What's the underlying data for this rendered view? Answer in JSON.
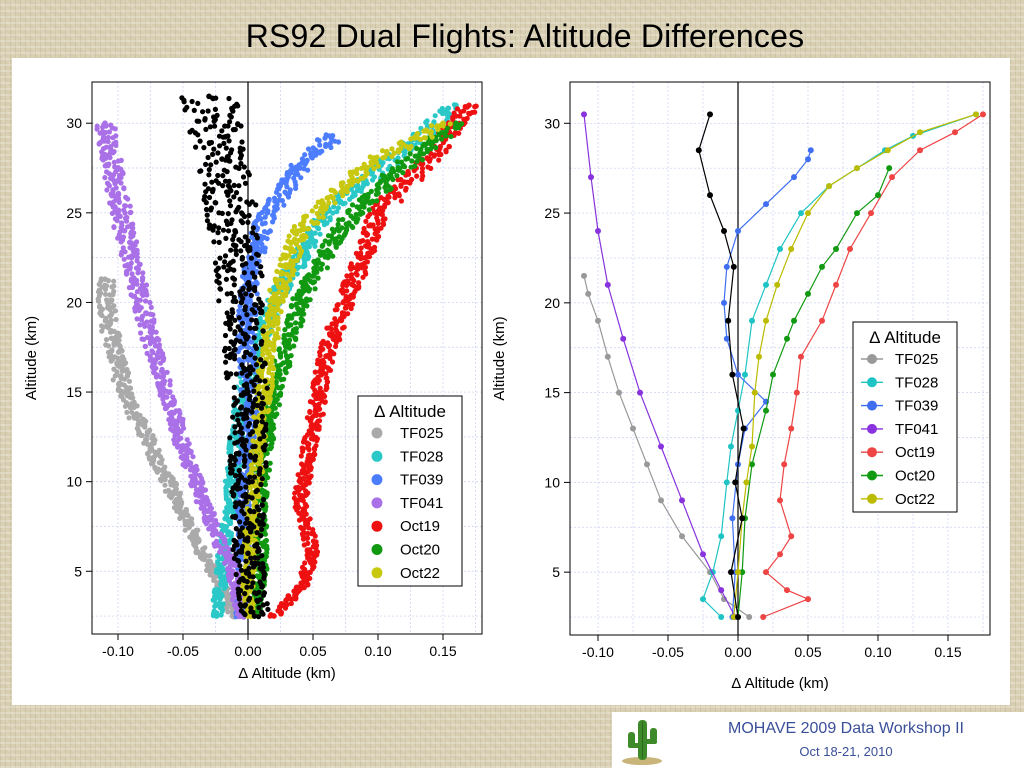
{
  "title": "RS92 Dual Flights: Altitude Differences",
  "footer": {
    "line1": "MOHAVE 2009 Data Workshop II",
    "line2": "Oct 18-21, 2010"
  },
  "chart_data": [
    {
      "type": "scatter",
      "xlabel": "Δ Altitude (km)",
      "ylabel": "Altitude (km)",
      "xlim": [
        -0.12,
        0.18
      ],
      "ylim": [
        1.5,
        32.3
      ],
      "xticks": [
        -0.1,
        -0.05,
        0.0,
        0.05,
        0.1,
        0.15
      ],
      "xtick_labels": [
        "-0.10",
        "-0.05",
        "0.00",
        "0.05",
        "0.10",
        "0.15"
      ],
      "yticks": [
        5,
        10,
        15,
        20,
        25,
        30
      ],
      "ytick_labels": [
        "5",
        "10",
        "15",
        "20",
        "25",
        "30"
      ],
      "grid": true,
      "legend": {
        "title": "Δ Altitude",
        "position": "bottom-right"
      },
      "series": [
        {
          "name": "TF025",
          "color": "#aaaaaa",
          "points": [
            [
              -0.012,
              2.5
            ],
            [
              -0.018,
              4
            ],
            [
              -0.035,
              6
            ],
            [
              -0.055,
              9
            ],
            [
              -0.075,
              12
            ],
            [
              -0.095,
              15
            ],
            [
              -0.105,
              18
            ],
            [
              -0.11,
              21.3
            ]
          ]
        },
        {
          "name": "TF028",
          "color": "#2bc8c8",
          "points": [
            [
              -0.024,
              2.5
            ],
            [
              -0.02,
              5
            ],
            [
              -0.012,
              10
            ],
            [
              -0.005,
              15
            ],
            [
              0.02,
              20
            ],
            [
              0.06,
              25
            ],
            [
              0.12,
              28.5
            ],
            [
              0.16,
              31
            ]
          ]
        },
        {
          "name": "TF039",
          "color": "#4d7dff",
          "points": [
            [
              -0.005,
              2.5
            ],
            [
              -0.004,
              5
            ],
            [
              -0.003,
              10
            ],
            [
              0.002,
              14
            ],
            [
              -0.002,
              18
            ],
            [
              0.002,
              22
            ],
            [
              0.015,
              25
            ],
            [
              0.04,
              27.5
            ],
            [
              0.065,
              29.3
            ]
          ]
        },
        {
          "name": "TF041",
          "color": "#aa70e8",
          "points": [
            [
              -0.005,
              2.5
            ],
            [
              -0.012,
              5
            ],
            [
              -0.03,
              8
            ],
            [
              -0.05,
              12
            ],
            [
              -0.075,
              18
            ],
            [
              -0.095,
              24
            ],
            [
              -0.11,
              30
            ]
          ]
        },
        {
          "name": "Oct19",
          "color": "#ee1111",
          "points": [
            [
              0.02,
              2.5
            ],
            [
              0.04,
              4
            ],
            [
              0.05,
              6
            ],
            [
              0.04,
              9
            ],
            [
              0.05,
              13
            ],
            [
              0.06,
              17
            ],
            [
              0.08,
              21
            ],
            [
              0.1,
              25
            ],
            [
              0.14,
              28
            ],
            [
              0.17,
              31
            ]
          ]
        },
        {
          "name": "Oct20",
          "color": "#119911",
          "points": [
            [
              0.005,
              2.5
            ],
            [
              0.01,
              5
            ],
            [
              0.01,
              10
            ],
            [
              0.02,
              15
            ],
            [
              0.04,
              20
            ],
            [
              0.07,
              24
            ],
            [
              0.11,
              27
            ],
            [
              0.16,
              30
            ]
          ]
        },
        {
          "name": "Oct22",
          "color": "#c8c811",
          "points": [
            [
              0.0,
              2.5
            ],
            [
              0.0,
              5
            ],
            [
              0.005,
              10
            ],
            [
              0.012,
              15
            ],
            [
              0.02,
              20
            ],
            [
              0.04,
              24
            ],
            [
              0.09,
              27.5
            ],
            [
              0.15,
              30
            ]
          ]
        },
        {
          "name": "",
          "color": "#000000",
          "points": [
            [
              0.005,
              2.5
            ],
            [
              0.0,
              6
            ],
            [
              0.0,
              10
            ],
            [
              0.0,
              15
            ],
            [
              -0.005,
              20
            ],
            [
              -0.01,
              24
            ],
            [
              -0.02,
              28
            ],
            [
              -0.03,
              31.5
            ]
          ]
        }
      ]
    },
    {
      "type": "line",
      "xlabel": "Δ Altitude (km)",
      "ylabel": "Altitude (km)",
      "xlim": [
        -0.12,
        0.18
      ],
      "ylim": [
        1.5,
        32.3
      ],
      "xticks": [
        -0.1,
        -0.05,
        0.0,
        0.05,
        0.1,
        0.15
      ],
      "xtick_labels": [
        "-0.10",
        "-0.05",
        "0.00",
        "0.05",
        "0.10",
        "0.15"
      ],
      "yticks": [
        5,
        10,
        15,
        20,
        25,
        30
      ],
      "ytick_labels": [
        "5",
        "10",
        "15",
        "20",
        "25",
        "30"
      ],
      "grid": true,
      "legend": {
        "title": "Δ Altitude",
        "position": "right"
      },
      "series": [
        {
          "name": "TF025",
          "color": "#999999",
          "points": [
            [
              0.008,
              2.5
            ],
            [
              -0.01,
              3.5
            ],
            [
              -0.02,
              5
            ],
            [
              -0.04,
              7
            ],
            [
              -0.055,
              9
            ],
            [
              -0.065,
              11
            ],
            [
              -0.075,
              13
            ],
            [
              -0.085,
              15
            ],
            [
              -0.093,
              17
            ],
            [
              -0.1,
              19
            ],
            [
              -0.107,
              20.5
            ],
            [
              -0.11,
              21.5
            ]
          ]
        },
        {
          "name": "TF028",
          "color": "#1ec4c4",
          "points": [
            [
              -0.012,
              2.5
            ],
            [
              -0.025,
              3.5
            ],
            [
              -0.018,
              5
            ],
            [
              -0.012,
              7
            ],
            [
              -0.008,
              10
            ],
            [
              -0.005,
              12
            ],
            [
              0.0,
              14
            ],
            [
              0.005,
              16
            ],
            [
              0.01,
              19
            ],
            [
              0.02,
              21
            ],
            [
              0.03,
              23
            ],
            [
              0.045,
              25
            ],
            [
              0.065,
              26.5
            ],
            [
              0.085,
              27.5
            ],
            [
              0.105,
              28.5
            ],
            [
              0.125,
              29.3
            ],
            [
              0.17,
              30.5
            ]
          ]
        },
        {
          "name": "TF039",
          "color": "#3f6ff0",
          "points": [
            [
              -0.004,
              2.5
            ],
            [
              -0.002,
              5
            ],
            [
              -0.004,
              8
            ],
            [
              0.0,
              11
            ],
            [
              0.005,
              13
            ],
            [
              0.02,
              14.5
            ],
            [
              0.0,
              16
            ],
            [
              -0.008,
              18
            ],
            [
              -0.01,
              20
            ],
            [
              -0.008,
              22
            ],
            [
              0.0,
              24
            ],
            [
              0.02,
              25.5
            ],
            [
              0.04,
              27
            ],
            [
              0.05,
              28
            ],
            [
              0.052,
              28.5
            ]
          ]
        },
        {
          "name": "TF041",
          "color": "#8833dd",
          "points": [
            [
              -0.002,
              2.5
            ],
            [
              -0.012,
              4
            ],
            [
              -0.025,
              6
            ],
            [
              -0.04,
              9
            ],
            [
              -0.055,
              12
            ],
            [
              -0.07,
              15
            ],
            [
              -0.082,
              18
            ],
            [
              -0.093,
              21
            ],
            [
              -0.1,
              24
            ],
            [
              -0.105,
              27
            ],
            [
              -0.11,
              30.5
            ]
          ]
        },
        {
          "name": "Oct19",
          "color": "#ee4444",
          "points": [
            [
              0.018,
              2.5
            ],
            [
              0.05,
              3.5
            ],
            [
              0.035,
              4
            ],
            [
              0.02,
              5
            ],
            [
              0.03,
              6
            ],
            [
              0.038,
              7
            ],
            [
              0.03,
              9
            ],
            [
              0.033,
              11
            ],
            [
              0.038,
              13
            ],
            [
              0.042,
              15
            ],
            [
              0.045,
              17
            ],
            [
              0.06,
              19
            ],
            [
              0.07,
              21
            ],
            [
              0.08,
              23
            ],
            [
              0.095,
              25
            ],
            [
              0.11,
              27
            ],
            [
              0.13,
              28.5
            ],
            [
              0.155,
              29.5
            ],
            [
              0.175,
              30.5
            ]
          ]
        },
        {
          "name": "Oct20",
          "color": "#119911",
          "points": [
            [
              0.0,
              2.5
            ],
            [
              0.003,
              5
            ],
            [
              0.005,
              8
            ],
            [
              0.01,
              11
            ],
            [
              0.02,
              14
            ],
            [
              0.025,
              16
            ],
            [
              0.035,
              18
            ],
            [
              0.04,
              19
            ],
            [
              0.05,
              20.5
            ],
            [
              0.06,
              22
            ],
            [
              0.07,
              23
            ],
            [
              0.085,
              25
            ],
            [
              0.1,
              26
            ],
            [
              0.108,
              27.5
            ]
          ]
        },
        {
          "name": "Oct22",
          "color": "#bbbb00",
          "points": [
            [
              -0.003,
              2.5
            ],
            [
              0.0,
              5
            ],
            [
              0.003,
              8
            ],
            [
              0.006,
              10
            ],
            [
              0.01,
              12
            ],
            [
              0.012,
              15
            ],
            [
              0.015,
              17
            ],
            [
              0.02,
              19
            ],
            [
              0.028,
              21
            ],
            [
              0.038,
              23
            ],
            [
              0.05,
              25
            ],
            [
              0.065,
              26.5
            ],
            [
              0.085,
              27.5
            ],
            [
              0.107,
              28.5
            ],
            [
              0.13,
              29.5
            ],
            [
              0.17,
              30.5
            ]
          ]
        },
        {
          "name": "",
          "color": "#000000",
          "points": [
            [
              0.0,
              2.5
            ],
            [
              -0.005,
              5
            ],
            [
              0.003,
              8
            ],
            [
              -0.002,
              10
            ],
            [
              0.004,
              13
            ],
            [
              -0.004,
              16
            ],
            [
              -0.007,
              19
            ],
            [
              -0.003,
              22
            ],
            [
              -0.01,
              24
            ],
            [
              -0.02,
              26
            ],
            [
              -0.028,
              28.5
            ],
            [
              -0.02,
              30.5
            ]
          ]
        }
      ]
    }
  ]
}
